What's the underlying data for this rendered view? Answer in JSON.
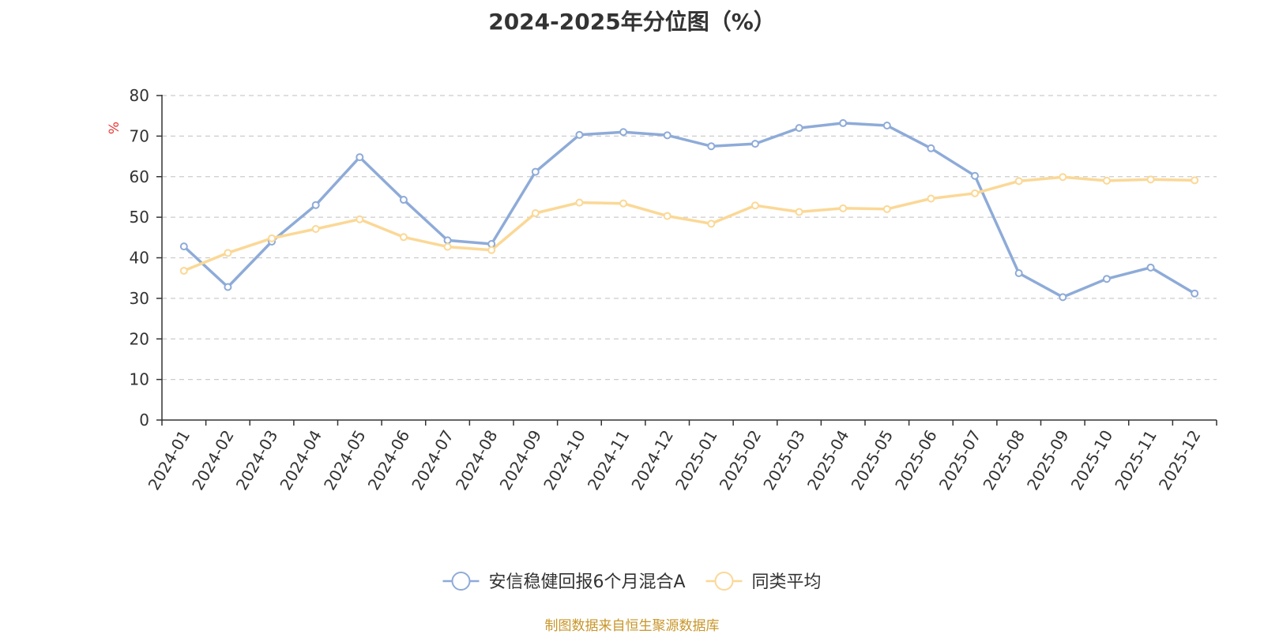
{
  "chart_data": {
    "type": "line",
    "title": "2024-2025年分位图（%）",
    "ylabel": "%",
    "ylim": [
      0,
      80
    ],
    "yticks": [
      0,
      10,
      20,
      30,
      40,
      50,
      60,
      70,
      80
    ],
    "grid": true,
    "legend_position": "bottom",
    "x": [
      "2024-01",
      "2024-02",
      "2024-03",
      "2024-04",
      "2024-05",
      "2024-06",
      "2024-07",
      "2024-08",
      "2024-09",
      "2024-10",
      "2024-11",
      "2024-12",
      "2025-01",
      "2025-02",
      "2025-03",
      "2025-04",
      "2025-05",
      "2025-06",
      "2025-07",
      "2025-08",
      "2025-09",
      "2025-10",
      "2025-11",
      "2025-12"
    ],
    "series": [
      {
        "name": "安信稳健回报6个月混合A",
        "color": "#8eabd8",
        "values": [
          42.8,
          32.8,
          44.0,
          53.0,
          64.8,
          54.3,
          44.3,
          43.4,
          61.2,
          70.3,
          71.0,
          70.2,
          67.5,
          68.1,
          72.0,
          73.2,
          72.6,
          67.0,
          60.2,
          36.2,
          30.3,
          34.8,
          37.6,
          31.2
        ]
      },
      {
        "name": "同类平均",
        "color": "#fbd896",
        "values": [
          36.8,
          41.2,
          44.8,
          47.1,
          49.5,
          45.1,
          42.7,
          41.9,
          51.0,
          53.6,
          53.4,
          50.3,
          48.4,
          52.9,
          51.3,
          52.2,
          52.0,
          54.6,
          55.9,
          58.9,
          59.9,
          59.0,
          59.3,
          59.1
        ]
      }
    ],
    "source": "制图数据来自恒生聚源数据库"
  }
}
